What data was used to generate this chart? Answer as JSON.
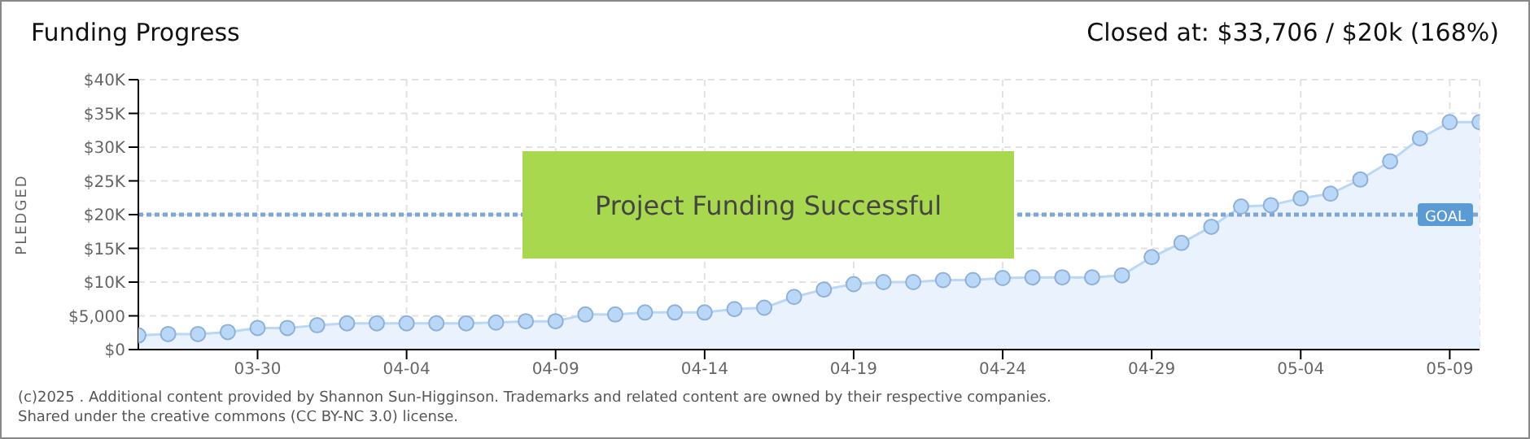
{
  "chart_data": {
    "type": "area",
    "title": "Funding Progress",
    "subtitle": "Closed at: $33,706 / $20k (168%)",
    "ylabel": "PLEDGED",
    "x": [
      "--03-26",
      "--03-27",
      "--03-28",
      "--03-29",
      "--03-30",
      "--03-31",
      "--04-01",
      "--04-02",
      "--04-03",
      "--04-04",
      "--04-05",
      "--04-06",
      "--04-07",
      "--04-08",
      "--04-09",
      "--04-10",
      "--04-11",
      "--04-12",
      "--04-13",
      "--04-14",
      "--04-15",
      "--04-16",
      "--04-17",
      "--04-18",
      "--04-19",
      "--04-20",
      "--04-21",
      "--04-22",
      "--04-23",
      "--04-24",
      "--04-25",
      "--04-26",
      "--04-27",
      "--04-28",
      "--04-29",
      "--04-30",
      "--05-01",
      "--05-02",
      "--05-03",
      "--05-04",
      "--05-05",
      "--05-06",
      "--05-07",
      "--05-08",
      "--05-09",
      "--05-10"
    ],
    "series": [
      {
        "color": "#b9d7f7",
        "values": [
          2100,
          2300,
          2300,
          2600,
          3200,
          3200,
          3600,
          3900,
          3900,
          3900,
          3900,
          3900,
          4000,
          4200,
          4200,
          5200,
          5200,
          5500,
          5500,
          5500,
          6000,
          6200,
          7800,
          8900,
          9700,
          10000,
          10000,
          10300,
          10300,
          10600,
          10700,
          10700,
          10700,
          11000,
          13700,
          15800,
          18200,
          21200,
          21400,
          22400,
          23100,
          25200,
          27900,
          31300,
          33706,
          33706
        ]
      }
    ],
    "xlim": [
      "--03-26",
      "--05-10"
    ],
    "xticks": [
      {
        "value": "--03-30",
        "label": "03-30"
      },
      {
        "value": "--04-04",
        "label": "04-04"
      },
      {
        "value": "--04-09",
        "label": "04-09"
      },
      {
        "value": "--04-14",
        "label": "04-14"
      },
      {
        "value": "--04-19",
        "label": "04-19"
      },
      {
        "value": "--04-24",
        "label": "04-24"
      },
      {
        "value": "--04-29",
        "label": "04-29"
      },
      {
        "value": "--05-04",
        "label": "05-04"
      },
      {
        "value": "--05-09",
        "label": "05-09"
      }
    ],
    "ylim": [
      0,
      40000
    ],
    "yticks": [
      {
        "value": 0,
        "label": "$0"
      },
      {
        "value": 5000,
        "label": "$5,000"
      },
      {
        "value": 10000,
        "label": "$10K"
      },
      {
        "value": 15000,
        "label": "$15K"
      },
      {
        "value": 20000,
        "label": "$20K"
      },
      {
        "value": 25000,
        "label": "$25K"
      },
      {
        "value": 30000,
        "label": "$30K"
      },
      {
        "value": 35000,
        "label": "$35K"
      },
      {
        "value": 40000,
        "label": "$40K"
      }
    ],
    "grid": true,
    "marker": "circle",
    "ref_lines": [
      {
        "axis": "y",
        "value": 20000,
        "label": "GOAL",
        "color": "#7fa6d6",
        "line_style": "dotted"
      }
    ],
    "annotations": [
      "Project Funding Successful",
      "(c)2025 . Additional content provided by Shannon Sun-Higginson. Trademarks and related content are owned by their respective companies.",
      "Shared under the creative commons (CC BY-NC 3.0) license."
    ]
  }
}
